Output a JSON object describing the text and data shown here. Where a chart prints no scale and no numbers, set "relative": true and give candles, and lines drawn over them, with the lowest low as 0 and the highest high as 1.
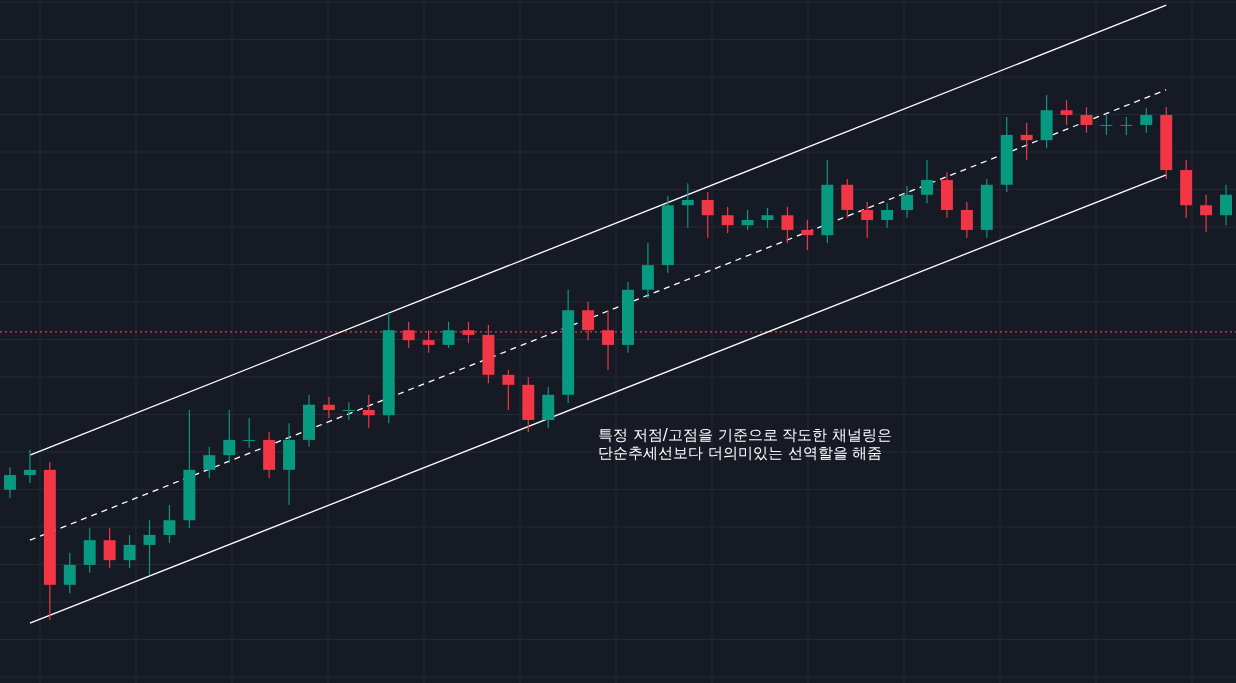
{
  "chart_data": {
    "type": "candlestick",
    "relative": true,
    "grid": true,
    "categories": [
      null,
      null,
      null,
      null,
      null,
      null,
      null,
      null,
      null,
      null,
      null,
      null,
      null,
      null,
      null,
      null,
      null,
      null,
      null,
      null,
      null,
      null,
      null,
      null,
      null,
      null,
      null,
      null,
      null,
      null,
      null,
      null,
      null,
      null,
      null,
      null,
      null,
      null,
      null,
      null,
      null,
      null,
      null,
      null,
      null,
      null,
      null,
      null,
      null,
      null,
      null,
      null,
      null,
      null,
      null,
      null,
      null,
      null,
      null,
      null,
      null,
      null
    ],
    "ohlc": [
      [
        0.248,
        0.291,
        0.232,
        0.276
      ],
      [
        0.276,
        0.324,
        0.261,
        0.286
      ],
      [
        0.286,
        0.301,
        0,
        0.067
      ],
      [
        0.067,
        0.128,
        0.051,
        0.105
      ],
      [
        0.105,
        0.175,
        0.09,
        0.152
      ],
      [
        0.152,
        0.175,
        0.099,
        0.114
      ],
      [
        0.114,
        0.162,
        0.099,
        0.143
      ],
      [
        0.143,
        0.19,
        0.086,
        0.162
      ],
      [
        0.162,
        0.219,
        0.147,
        0.19
      ],
      [
        0.19,
        0.4,
        0.175,
        0.286
      ],
      [
        0.286,
        0.33,
        0.27,
        0.314
      ],
      [
        0.314,
        0.4,
        0.299,
        0.343
      ],
      [
        0.343,
        0.385,
        0.328,
        0.343
      ],
      [
        0.343,
        0.358,
        0.27,
        0.286
      ],
      [
        0.286,
        0.375,
        0.219,
        0.343
      ],
      [
        0.343,
        0.429,
        0.33,
        0.41
      ],
      [
        0.41,
        0.425,
        0.385,
        0.4
      ],
      [
        0.4,
        0.415,
        0.381,
        0.4
      ],
      [
        0.4,
        0.429,
        0.366,
        0.39
      ],
      [
        0.39,
        0.585,
        0.375,
        0.552
      ],
      [
        0.552,
        0.568,
        0.518,
        0.533
      ],
      [
        0.533,
        0.552,
        0.509,
        0.524
      ],
      [
        0.524,
        0.568,
        0.518,
        0.552
      ],
      [
        0.552,
        0.568,
        0.528,
        0.543
      ],
      [
        0.543,
        0.562,
        0.451,
        0.467
      ],
      [
        0.467,
        0.476,
        0.4,
        0.448
      ],
      [
        0.448,
        0.463,
        0.358,
        0.381
      ],
      [
        0.381,
        0.444,
        0.366,
        0.429
      ],
      [
        0.429,
        0.629,
        0.413,
        0.59
      ],
      [
        0.59,
        0.606,
        0.533,
        0.552
      ],
      [
        0.552,
        0.59,
        0.476,
        0.524
      ],
      [
        0.524,
        0.644,
        0.509,
        0.629
      ],
      [
        0.629,
        0.718,
        0.613,
        0.676
      ],
      [
        0.676,
        0.808,
        0.661,
        0.79
      ],
      [
        0.79,
        0.832,
        0.747,
        0.8
      ],
      [
        0.8,
        0.815,
        0.728,
        0.771
      ],
      [
        0.771,
        0.787,
        0.737,
        0.752
      ],
      [
        0.752,
        0.781,
        0.743,
        0.762
      ],
      [
        0.762,
        0.785,
        0.747,
        0.771
      ],
      [
        0.771,
        0.787,
        0.718,
        0.743
      ],
      [
        0.743,
        0.762,
        0.705,
        0.733
      ],
      [
        0.733,
        0.876,
        0.718,
        0.829
      ],
      [
        0.829,
        0.84,
        0.766,
        0.781
      ],
      [
        0.781,
        0.796,
        0.728,
        0.762
      ],
      [
        0.762,
        0.794,
        0.747,
        0.781
      ],
      [
        0.781,
        0.826,
        0.766,
        0.81
      ],
      [
        0.81,
        0.876,
        0.794,
        0.838
      ],
      [
        0.838,
        0.853,
        0.766,
        0.781
      ],
      [
        0.781,
        0.796,
        0.728,
        0.743
      ],
      [
        0.743,
        0.84,
        0.728,
        0.829
      ],
      [
        0.829,
        0.958,
        0.815,
        0.924
      ],
      [
        0.924,
        0.947,
        0.876,
        0.914
      ],
      [
        0.914,
        1.0,
        0.899,
        0.971
      ],
      [
        0.971,
        0.99,
        0.943,
        0.962
      ],
      [
        0.962,
        0.977,
        0.928,
        0.943
      ],
      [
        0.943,
        0.962,
        0.924,
        0.943
      ],
      [
        0.943,
        0.958,
        0.924,
        0.943
      ],
      [
        0.943,
        0.975,
        0.928,
        0.962
      ],
      [
        0.962,
        0.977,
        0.84,
        0.857
      ],
      [
        0.857,
        0.876,
        0.766,
        0.79
      ],
      [
        0.79,
        0.81,
        0.739,
        0.771
      ],
      [
        0.771,
        0.829,
        0.752,
        0.81
      ]
    ],
    "colors": [
      "#089981",
      "#089981",
      "#f23645",
      "#089981",
      "#089981",
      "#f23645",
      "#089981",
      "#089981",
      "#089981",
      "#089981",
      "#089981",
      "#089981",
      "#089981",
      "#f23645",
      "#089981",
      "#089981",
      "#f23645",
      "#089981",
      "#f23645",
      "#089981",
      "#f23645",
      "#f23645",
      "#089981",
      "#f23645",
      "#f23645",
      "#f23645",
      "#f23645",
      "#089981",
      "#089981",
      "#f23645",
      "#f23645",
      "#089981",
      "#089981",
      "#089981",
      "#089981",
      "#f23645",
      "#f23645",
      "#089981",
      "#089981",
      "#f23645",
      "#f23645",
      "#089981",
      "#f23645",
      "#f23645",
      "#089981",
      "#089981",
      "#089981",
      "#f23645",
      "#f23645",
      "#089981",
      "#089981",
      "#f23645",
      "#089981",
      "#f23645",
      "#f23645",
      "#089981",
      "#089981",
      "#089981",
      "#f23645",
      "#f23645",
      "#f23645",
      "#089981"
    ],
    "series": [
      {
        "type": "line",
        "color": "#ffffff",
        "line_style": "solid",
        "values": [
          null,
          0.314,
          null,
          null,
          null,
          null,
          null,
          null,
          null,
          null,
          null,
          null,
          null,
          null,
          null,
          null,
          null,
          null,
          null,
          null,
          null,
          null,
          null,
          null,
          null,
          null,
          null,
          null,
          null,
          null,
          null,
          null,
          null,
          null,
          null,
          null,
          null,
          null,
          null,
          null,
          null,
          null,
          null,
          null,
          null,
          null,
          null,
          null,
          null,
          null,
          null,
          null,
          null,
          null,
          null,
          null,
          null,
          null,
          1.171,
          null,
          null,
          null
        ]
      },
      {
        "type": "line",
        "color": "#ffffff",
        "line_style": "dashed",
        "values": [
          null,
          0.152,
          null,
          null,
          null,
          null,
          null,
          null,
          null,
          null,
          null,
          null,
          null,
          null,
          null,
          null,
          null,
          null,
          null,
          null,
          null,
          null,
          null,
          null,
          null,
          null,
          null,
          null,
          null,
          null,
          null,
          null,
          null,
          null,
          null,
          null,
          null,
          null,
          null,
          null,
          null,
          null,
          null,
          null,
          null,
          null,
          null,
          null,
          null,
          null,
          null,
          null,
          null,
          null,
          null,
          null,
          null,
          null,
          1.01,
          null,
          null,
          null
        ]
      },
      {
        "type": "line",
        "color": "#ffffff",
        "line_style": "solid",
        "values": [
          null,
          -0.006,
          null,
          null,
          null,
          null,
          null,
          null,
          null,
          null,
          null,
          null,
          null,
          null,
          null,
          null,
          null,
          null,
          null,
          null,
          null,
          null,
          null,
          null,
          null,
          null,
          null,
          null,
          null,
          null,
          null,
          null,
          null,
          null,
          null,
          null,
          null,
          null,
          null,
          null,
          null,
          null,
          null,
          null,
          null,
          null,
          null,
          null,
          null,
          null,
          null,
          null,
          null,
          null,
          null,
          null,
          null,
          null,
          0.848,
          null,
          null,
          null
        ]
      }
    ],
    "ref_lines": [
      {
        "axis": "y",
        "value": 0.549,
        "color": "#f23645",
        "line_style": "dotted"
      }
    ],
    "annotations": [
      "특정 저점/고점을 기준으로 작도한 채널링은\n단순추세선보다 더의미있는 선역할을 해줌"
    ]
  }
}
